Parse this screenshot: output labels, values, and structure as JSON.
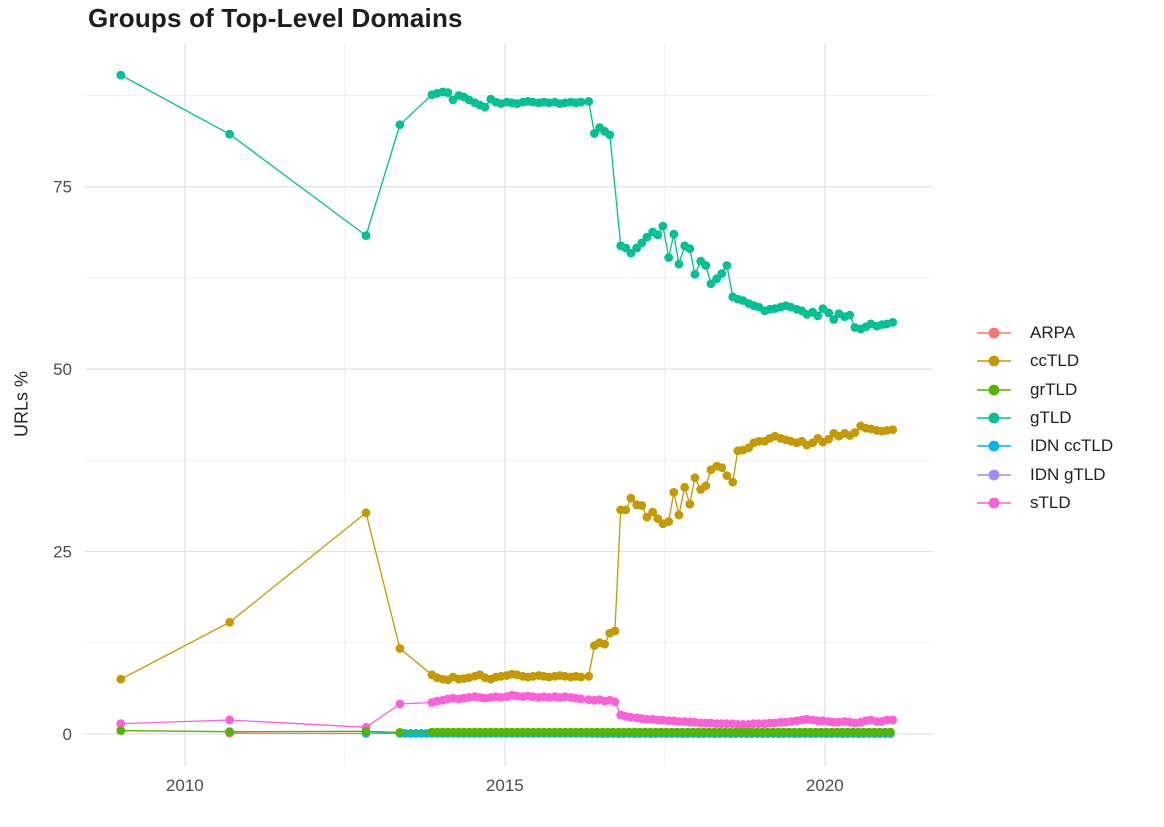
{
  "title": "Groups of Top-Level Domains",
  "chart_data": {
    "type": "line",
    "title": "Groups of Top-Level Domains",
    "xlabel": "",
    "ylabel": "URLs %",
    "x_ticks": [
      2010,
      2015,
      2020
    ],
    "x_minor_ticks": [
      2012.5,
      2017.5
    ],
    "y_ticks": [
      0,
      25,
      50,
      75
    ],
    "y_minor_ticks": [
      12.5,
      37.5,
      62.5,
      87.5
    ],
    "xlim": [
      2008.44,
      2021.69
    ],
    "ylim": [
      -4.4,
      94.7
    ],
    "grid": true,
    "legend_position": "right",
    "grid_major_color": "#e2e2e2",
    "grid_minor_color": "#f0f0f0",
    "tick_label_color": "#4e4e4e",
    "draw_order": [
      "ARPA",
      "IDN gTLD",
      "IDN ccTLD",
      "sTLD",
      "ccTLD",
      "gTLD",
      "grTLD"
    ],
    "series": [
      {
        "name": "ARPA",
        "color": "#F8766D",
        "points": [
          [
            2010.7,
            0.1
          ],
          [
            2012.83,
            0.06
          ]
        ]
      },
      {
        "name": "ccTLD",
        "color": "#C49A00",
        "points": [
          [
            2009.0,
            7.5
          ],
          [
            2010.7,
            15.3
          ],
          [
            2012.83,
            30.3
          ],
          [
            2013.36,
            11.7
          ],
          [
            2013.86,
            8.1
          ],
          [
            2013.94,
            7.7
          ],
          [
            2014.03,
            7.5
          ],
          [
            2014.11,
            7.4
          ],
          [
            2014.19,
            7.8
          ],
          [
            2014.28,
            7.5
          ],
          [
            2014.36,
            7.6
          ],
          [
            2014.44,
            7.7
          ],
          [
            2014.53,
            7.9
          ],
          [
            2014.61,
            8.1
          ],
          [
            2014.69,
            7.7
          ],
          [
            2014.78,
            7.5
          ],
          [
            2014.86,
            7.8
          ],
          [
            2014.94,
            7.9
          ],
          [
            2015.03,
            8.0
          ],
          [
            2015.11,
            8.2
          ],
          [
            2015.19,
            8.1
          ],
          [
            2015.28,
            7.9
          ],
          [
            2015.36,
            7.8
          ],
          [
            2015.44,
            7.9
          ],
          [
            2015.53,
            8.0
          ],
          [
            2015.61,
            7.9
          ],
          [
            2015.69,
            7.8
          ],
          [
            2015.78,
            7.9
          ],
          [
            2015.86,
            8.0
          ],
          [
            2015.94,
            7.9
          ],
          [
            2016.03,
            7.8
          ],
          [
            2016.11,
            7.9
          ],
          [
            2016.19,
            7.8
          ],
          [
            2016.31,
            7.9
          ],
          [
            2016.4,
            12.1
          ],
          [
            2016.48,
            12.5
          ],
          [
            2016.56,
            12.3
          ],
          [
            2016.64,
            13.8
          ],
          [
            2016.72,
            14.1
          ],
          [
            2016.81,
            30.7
          ],
          [
            2016.89,
            30.7
          ],
          [
            2016.97,
            32.3
          ],
          [
            2017.06,
            31.4
          ],
          [
            2017.14,
            31.3
          ],
          [
            2017.22,
            29.7
          ],
          [
            2017.31,
            30.4
          ],
          [
            2017.39,
            29.5
          ],
          [
            2017.47,
            28.8
          ],
          [
            2017.56,
            29.1
          ],
          [
            2017.64,
            33.1
          ],
          [
            2017.72,
            30.0
          ],
          [
            2017.81,
            33.8
          ],
          [
            2017.89,
            31.5
          ],
          [
            2017.97,
            35.1
          ],
          [
            2018.06,
            33.5
          ],
          [
            2018.14,
            34.0
          ],
          [
            2018.22,
            36.2
          ],
          [
            2018.31,
            36.7
          ],
          [
            2018.39,
            36.5
          ],
          [
            2018.47,
            35.4
          ],
          [
            2018.56,
            34.5
          ],
          [
            2018.64,
            38.8
          ],
          [
            2018.72,
            38.9
          ],
          [
            2018.81,
            39.2
          ],
          [
            2018.89,
            39.9
          ],
          [
            2018.97,
            40.1
          ],
          [
            2019.06,
            40.1
          ],
          [
            2019.14,
            40.5
          ],
          [
            2019.22,
            40.8
          ],
          [
            2019.31,
            40.5
          ],
          [
            2019.39,
            40.3
          ],
          [
            2019.47,
            40.1
          ],
          [
            2019.56,
            39.9
          ],
          [
            2019.64,
            40.1
          ],
          [
            2019.72,
            39.6
          ],
          [
            2019.81,
            39.9
          ],
          [
            2019.89,
            40.5
          ],
          [
            2019.97,
            40.0
          ],
          [
            2020.06,
            40.4
          ],
          [
            2020.14,
            41.2
          ],
          [
            2020.22,
            40.8
          ],
          [
            2020.31,
            41.2
          ],
          [
            2020.39,
            40.9
          ],
          [
            2020.47,
            41.3
          ],
          [
            2020.56,
            42.2
          ],
          [
            2020.64,
            41.9
          ],
          [
            2020.72,
            41.8
          ],
          [
            2020.81,
            41.6
          ],
          [
            2020.89,
            41.5
          ],
          [
            2020.97,
            41.6
          ],
          [
            2021.06,
            41.7
          ]
        ]
      },
      {
        "name": "grTLD",
        "color": "#53B400",
        "points": [
          [
            2009.0,
            0.45
          ],
          [
            2010.7,
            0.3
          ],
          [
            2012.83,
            0.35
          ],
          [
            2013.36,
            0.2
          ]
        ],
        "flat": {
          "from": 2013.86,
          "to": 2021.06,
          "step": 0.0833,
          "value": 0.25
        }
      },
      {
        "name": "gTLD",
        "color": "#00C094",
        "points": [
          [
            2009.0,
            90.3
          ],
          [
            2010.7,
            82.2
          ],
          [
            2012.83,
            68.3
          ],
          [
            2013.36,
            83.5
          ],
          [
            2013.86,
            87.6
          ],
          [
            2013.94,
            87.8
          ],
          [
            2014.03,
            88.0
          ],
          [
            2014.11,
            87.9
          ],
          [
            2014.19,
            86.9
          ],
          [
            2014.28,
            87.5
          ],
          [
            2014.36,
            87.3
          ],
          [
            2014.44,
            86.9
          ],
          [
            2014.53,
            86.5
          ],
          [
            2014.61,
            86.2
          ],
          [
            2014.69,
            85.9
          ],
          [
            2014.78,
            87.0
          ],
          [
            2014.86,
            86.6
          ],
          [
            2014.94,
            86.4
          ],
          [
            2015.03,
            86.6
          ],
          [
            2015.11,
            86.5
          ],
          [
            2015.19,
            86.4
          ],
          [
            2015.28,
            86.6
          ],
          [
            2015.36,
            86.7
          ],
          [
            2015.44,
            86.6
          ],
          [
            2015.53,
            86.5
          ],
          [
            2015.61,
            86.6
          ],
          [
            2015.69,
            86.5
          ],
          [
            2015.78,
            86.6
          ],
          [
            2015.86,
            86.4
          ],
          [
            2015.94,
            86.5
          ],
          [
            2016.03,
            86.6
          ],
          [
            2016.11,
            86.5
          ],
          [
            2016.19,
            86.6
          ],
          [
            2016.31,
            86.7
          ],
          [
            2016.4,
            82.3
          ],
          [
            2016.48,
            83.1
          ],
          [
            2016.56,
            82.6
          ],
          [
            2016.64,
            82.1
          ],
          [
            2016.81,
            66.9
          ],
          [
            2016.89,
            66.6
          ],
          [
            2016.97,
            65.9
          ],
          [
            2017.06,
            66.6
          ],
          [
            2017.14,
            67.3
          ],
          [
            2017.22,
            68.1
          ],
          [
            2017.31,
            68.8
          ],
          [
            2017.39,
            68.4
          ],
          [
            2017.47,
            69.6
          ],
          [
            2017.56,
            65.3
          ],
          [
            2017.64,
            68.5
          ],
          [
            2017.72,
            64.4
          ],
          [
            2017.81,
            66.9
          ],
          [
            2017.89,
            66.5
          ],
          [
            2017.97,
            63.0
          ],
          [
            2018.06,
            64.8
          ],
          [
            2018.14,
            64.2
          ],
          [
            2018.22,
            61.7
          ],
          [
            2018.31,
            62.4
          ],
          [
            2018.39,
            63.1
          ],
          [
            2018.47,
            64.2
          ],
          [
            2018.56,
            59.9
          ],
          [
            2018.64,
            59.6
          ],
          [
            2018.72,
            59.4
          ],
          [
            2018.81,
            59.0
          ],
          [
            2018.89,
            58.7
          ],
          [
            2018.97,
            58.5
          ],
          [
            2019.06,
            58.0
          ],
          [
            2019.14,
            58.2
          ],
          [
            2019.22,
            58.3
          ],
          [
            2019.31,
            58.5
          ],
          [
            2019.39,
            58.7
          ],
          [
            2019.47,
            58.5
          ],
          [
            2019.56,
            58.2
          ],
          [
            2019.64,
            58.0
          ],
          [
            2019.72,
            57.5
          ],
          [
            2019.81,
            57.8
          ],
          [
            2019.89,
            57.3
          ],
          [
            2019.97,
            58.3
          ],
          [
            2020.06,
            57.7
          ],
          [
            2020.14,
            56.8
          ],
          [
            2020.22,
            57.6
          ],
          [
            2020.31,
            57.2
          ],
          [
            2020.39,
            57.4
          ],
          [
            2020.47,
            55.7
          ],
          [
            2020.56,
            55.5
          ],
          [
            2020.64,
            55.8
          ],
          [
            2020.72,
            56.2
          ],
          [
            2020.81,
            55.9
          ],
          [
            2020.89,
            56.1
          ],
          [
            2020.97,
            56.2
          ],
          [
            2021.06,
            56.4
          ]
        ]
      },
      {
        "name": "IDN ccTLD",
        "color": "#00B6EB",
        "points": [
          [
            2012.83,
            0.12
          ]
        ],
        "flat": {
          "from": 2013.36,
          "to": 2021.06,
          "step": 0.0833,
          "value": 0.07
        }
      },
      {
        "name": "IDN gTLD",
        "color": "#A58AFF",
        "points": [],
        "flat": {
          "from": 2016.36,
          "to": 2021.06,
          "step": 0.0833,
          "value": 0.04
        }
      },
      {
        "name": "sTLD",
        "color": "#FB61D7",
        "points": [
          [
            2009.0,
            1.4
          ],
          [
            2010.7,
            1.9
          ],
          [
            2012.83,
            0.9
          ],
          [
            2013.36,
            4.1
          ],
          [
            2013.86,
            4.3
          ],
          [
            2013.94,
            4.5
          ],
          [
            2014.03,
            4.6
          ],
          [
            2014.11,
            4.8
          ],
          [
            2014.19,
            4.9
          ],
          [
            2014.28,
            4.8
          ],
          [
            2014.36,
            4.9
          ],
          [
            2014.44,
            5.0
          ],
          [
            2014.53,
            5.1
          ],
          [
            2014.61,
            5.0
          ],
          [
            2014.69,
            4.9
          ],
          [
            2014.78,
            5.0
          ],
          [
            2014.86,
            5.1
          ],
          [
            2014.94,
            5.0
          ],
          [
            2015.03,
            5.1
          ],
          [
            2015.11,
            5.3
          ],
          [
            2015.19,
            5.2
          ],
          [
            2015.28,
            5.1
          ],
          [
            2015.36,
            5.2
          ],
          [
            2015.44,
            5.1
          ],
          [
            2015.53,
            5.0
          ],
          [
            2015.61,
            5.1
          ],
          [
            2015.69,
            5.0
          ],
          [
            2015.78,
            5.1
          ],
          [
            2015.86,
            5.0
          ],
          [
            2015.94,
            5.1
          ],
          [
            2016.03,
            5.0
          ],
          [
            2016.11,
            4.9
          ],
          [
            2016.19,
            4.8
          ],
          [
            2016.31,
            4.7
          ],
          [
            2016.4,
            4.6
          ],
          [
            2016.48,
            4.7
          ],
          [
            2016.56,
            4.5
          ],
          [
            2016.64,
            4.6
          ],
          [
            2016.72,
            4.4
          ],
          [
            2016.81,
            2.6
          ],
          [
            2016.89,
            2.4
          ],
          [
            2016.97,
            2.3
          ],
          [
            2017.06,
            2.2
          ],
          [
            2017.14,
            2.1
          ],
          [
            2017.22,
            2.0
          ],
          [
            2017.31,
            2.0
          ],
          [
            2017.39,
            1.9
          ],
          [
            2017.47,
            1.9
          ],
          [
            2017.56,
            1.8
          ],
          [
            2017.64,
            1.8
          ],
          [
            2017.72,
            1.7
          ],
          [
            2017.81,
            1.7
          ],
          [
            2017.89,
            1.6
          ],
          [
            2017.97,
            1.6
          ],
          [
            2018.06,
            1.5
          ],
          [
            2018.14,
            1.5
          ],
          [
            2018.22,
            1.5
          ],
          [
            2018.31,
            1.4
          ],
          [
            2018.39,
            1.4
          ],
          [
            2018.47,
            1.4
          ],
          [
            2018.56,
            1.4
          ],
          [
            2018.64,
            1.3
          ],
          [
            2018.72,
            1.3
          ],
          [
            2018.81,
            1.3
          ],
          [
            2018.89,
            1.4
          ],
          [
            2018.97,
            1.4
          ],
          [
            2019.06,
            1.4
          ],
          [
            2019.14,
            1.5
          ],
          [
            2019.22,
            1.5
          ],
          [
            2019.31,
            1.6
          ],
          [
            2019.39,
            1.6
          ],
          [
            2019.47,
            1.7
          ],
          [
            2019.56,
            1.8
          ],
          [
            2019.64,
            1.9
          ],
          [
            2019.72,
            2.0
          ],
          [
            2019.81,
            1.9
          ],
          [
            2019.89,
            1.8
          ],
          [
            2019.97,
            1.8
          ],
          [
            2020.06,
            1.7
          ],
          [
            2020.14,
            1.6
          ],
          [
            2020.22,
            1.6
          ],
          [
            2020.31,
            1.7
          ],
          [
            2020.39,
            1.6
          ],
          [
            2020.47,
            1.5
          ],
          [
            2020.56,
            1.6
          ],
          [
            2020.64,
            1.8
          ],
          [
            2020.72,
            1.9
          ],
          [
            2020.81,
            1.7
          ],
          [
            2020.89,
            1.7
          ],
          [
            2020.97,
            1.9
          ],
          [
            2021.06,
            1.9
          ]
        ]
      }
    ]
  }
}
